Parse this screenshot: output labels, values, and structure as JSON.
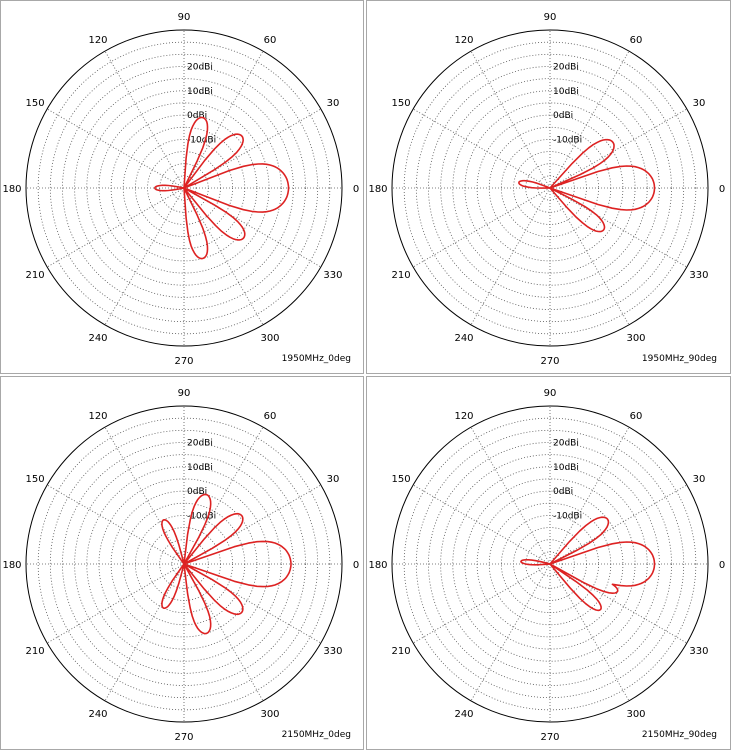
{
  "chart_data": [
    {
      "type": "polar",
      "caption": "1950MHz_0deg",
      "angle_ticks": [
        "0",
        "30",
        "60",
        "90",
        "120",
        "150",
        "180",
        "210",
        "240",
        "270",
        "300",
        "330"
      ],
      "radial_labels": [
        "20dBi",
        "10dBi",
        "0dBi",
        "-10dBi"
      ],
      "radial_tick_values": [
        20,
        10,
        0,
        -10
      ],
      "r_range_dbi": [
        -30,
        35
      ],
      "series": [
        {
          "color": "#dd2222",
          "lobes": [
            {
              "center_deg": 0,
              "peak_dbi": 13,
              "halfwidth_deg": 22
            },
            {
              "center_deg": 42,
              "peak_dbi": 2,
              "halfwidth_deg": 12
            },
            {
              "center_deg": -40,
              "peak_dbi": 2,
              "halfwidth_deg": 12
            },
            {
              "center_deg": 75,
              "peak_dbi": 0,
              "halfwidth_deg": 12
            },
            {
              "center_deg": -75,
              "peak_dbi": 0,
              "halfwidth_deg": 12
            },
            {
              "center_deg": 180,
              "peak_dbi": -18,
              "halfwidth_deg": 14
            }
          ]
        }
      ]
    },
    {
      "type": "polar",
      "caption": "1950MHz_90deg",
      "angle_ticks": [
        "0",
        "30",
        "60",
        "90",
        "120",
        "150",
        "180",
        "210",
        "240",
        "270",
        "300",
        "330"
      ],
      "radial_labels": [
        "20dBi",
        "10dBi",
        "0dBi",
        "-10dBi"
      ],
      "radial_tick_values": [
        20,
        10,
        0,
        -10
      ],
      "r_range_dbi": [
        -30,
        35
      ],
      "series": [
        {
          "color": "#dd2222",
          "lobes": [
            {
              "center_deg": 0,
              "peak_dbi": 13,
              "halfwidth_deg": 20
            },
            {
              "center_deg": 36,
              "peak_dbi": 2,
              "halfwidth_deg": 13
            },
            {
              "center_deg": -38,
              "peak_dbi": -2,
              "halfwidth_deg": 12
            },
            {
              "center_deg": 170,
              "peak_dbi": -17,
              "halfwidth_deg": 14
            }
          ]
        }
      ]
    },
    {
      "type": "polar",
      "caption": "2150MHz_0deg",
      "angle_ticks": [
        "0",
        "30",
        "60",
        "90",
        "120",
        "150",
        "180",
        "210",
        "240",
        "270",
        "300",
        "330"
      ],
      "radial_labels": [
        "20dBi",
        "10dBi",
        "0dBi",
        "-10dBi"
      ],
      "radial_tick_values": [
        20,
        10,
        0,
        -10
      ],
      "r_range_dbi": [
        -30,
        35
      ],
      "series": [
        {
          "color": "#dd2222",
          "lobes": [
            {
              "center_deg": 0,
              "peak_dbi": 14,
              "halfwidth_deg": 20
            },
            {
              "center_deg": 40,
              "peak_dbi": 1,
              "halfwidth_deg": 12
            },
            {
              "center_deg": -40,
              "peak_dbi": 1,
              "halfwidth_deg": 12
            },
            {
              "center_deg": 72,
              "peak_dbi": 0,
              "halfwidth_deg": 12
            },
            {
              "center_deg": -72,
              "peak_dbi": 0,
              "halfwidth_deg": 12
            },
            {
              "center_deg": 115,
              "peak_dbi": -10,
              "halfwidth_deg": 12
            },
            {
              "center_deg": -115,
              "peak_dbi": -10,
              "halfwidth_deg": 12
            }
          ]
        }
      ]
    },
    {
      "type": "polar",
      "caption": "2150MHz_90deg",
      "angle_ticks": [
        "0",
        "30",
        "60",
        "90",
        "120",
        "150",
        "180",
        "210",
        "240",
        "270",
        "300",
        "330"
      ],
      "radial_labels": [
        "20dBi",
        "10dBi",
        "0dBi",
        "-10dBi"
      ],
      "radial_tick_values": [
        20,
        10,
        0,
        -10
      ],
      "r_range_dbi": [
        -30,
        35
      ],
      "series": [
        {
          "color": "#dd2222",
          "lobes": [
            {
              "center_deg": 0,
              "peak_dbi": 13,
              "halfwidth_deg": 20
            },
            {
              "center_deg": 38,
              "peak_dbi": 0,
              "halfwidth_deg": 12
            },
            {
              "center_deg": -22,
              "peak_dbi": 0,
              "halfwidth_deg": 8
            },
            {
              "center_deg": -42,
              "peak_dbi": -2,
              "halfwidth_deg": 9
            },
            {
              "center_deg": 175,
              "peak_dbi": -18,
              "halfwidth_deg": 12
            }
          ]
        }
      ]
    }
  ]
}
